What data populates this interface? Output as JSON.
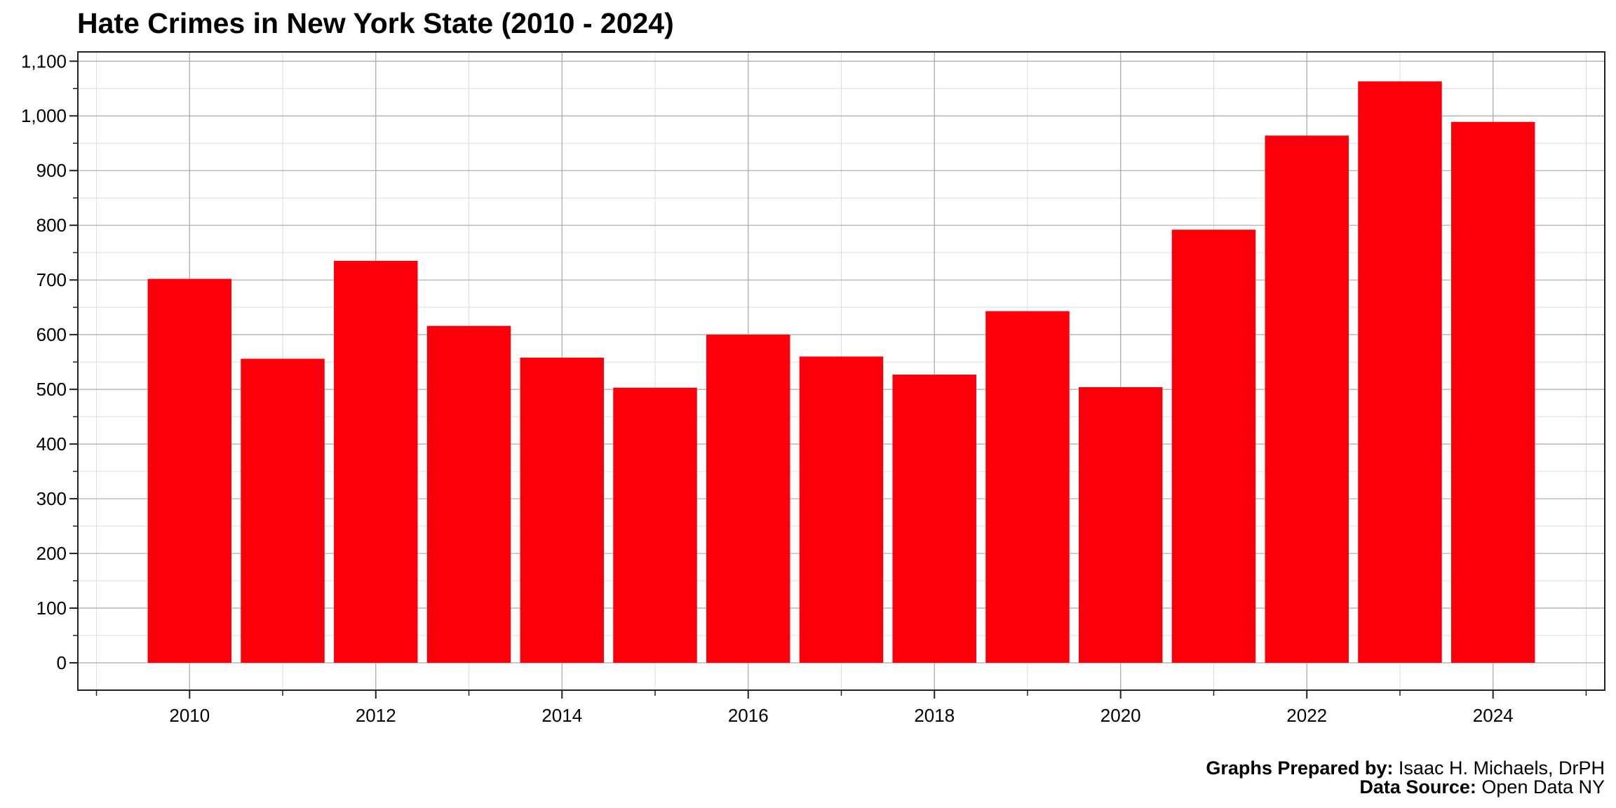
{
  "chart_data": {
    "type": "bar",
    "title": "Hate Crimes in New York State (2010 - 2024)",
    "xlabel": "",
    "ylabel": "",
    "categories": [
      "2010",
      "2011",
      "2012",
      "2013",
      "2014",
      "2015",
      "2016",
      "2017",
      "2018",
      "2019",
      "2020",
      "2021",
      "2022",
      "2023",
      "2024"
    ],
    "values": [
      702,
      556,
      735,
      616,
      558,
      503,
      600,
      560,
      527,
      643,
      504,
      792,
      964,
      1063,
      989
    ],
    "bar_color": "#fb000a",
    "x_ticks": [
      "2010",
      "2012",
      "2014",
      "2016",
      "2018",
      "2020",
      "2022",
      "2024"
    ],
    "xlim": [
      2008.8,
      2025.2
    ],
    "y_ticks": [
      "0",
      "100",
      "200",
      "300",
      "400",
      "500",
      "600",
      "700",
      "800",
      "900",
      "1,000",
      "1,100"
    ],
    "y_tick_values": [
      0,
      100,
      200,
      300,
      400,
      500,
      600,
      700,
      800,
      900,
      1000,
      1100
    ],
    "ylim": [
      -50,
      1117
    ],
    "grid": true,
    "legend": "none"
  },
  "caption": {
    "prepared_label": "Graphs Prepared by:",
    "prepared_value": " Isaac H. Michaels, DrPH",
    "source_label": "Data Source:",
    "source_value": " Open Data NY"
  }
}
